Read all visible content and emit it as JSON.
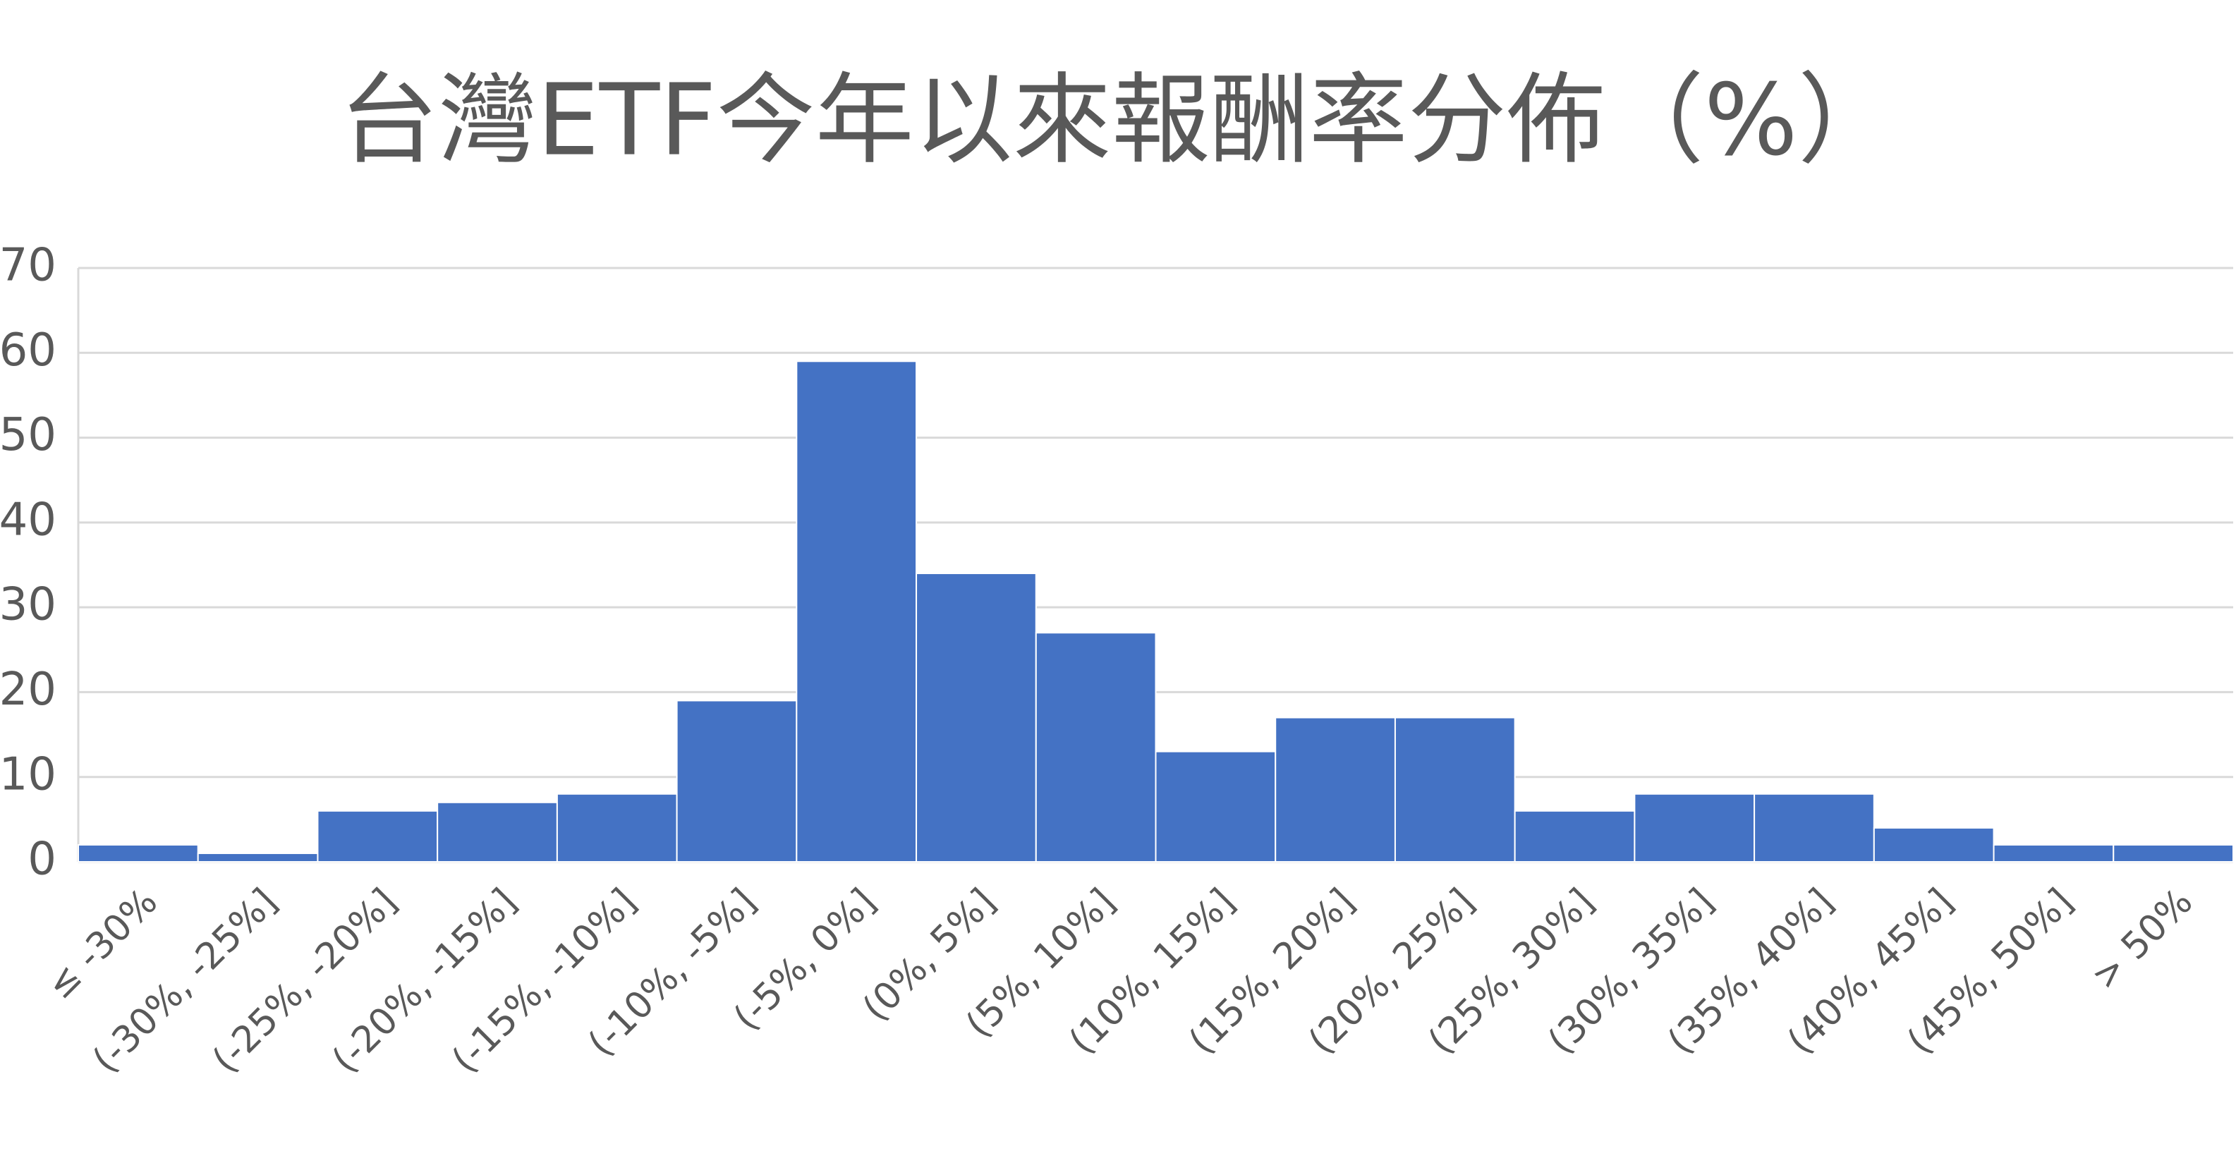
{
  "chart_data": {
    "type": "bar",
    "title": "台灣ETF今年以來報酬率分佈（%）",
    "categories": [
      "≤ -30%",
      "(-30%, -25%]",
      "(-25%, -20%]",
      "(-20%, -15%]",
      "(-15%, -10%]",
      "(-10%, -5%]",
      "(-5%, 0%]",
      "(0%, 5%]",
      "(5%, 10%]",
      "(10%, 15%]",
      "(15%, 20%]",
      "(20%, 25%]",
      "(25%, 30%]",
      "(30%, 35%]",
      "(35%, 40%]",
      "(40%, 45%]",
      "(45%, 50%]",
      "> 50%"
    ],
    "values": [
      2,
      1,
      6,
      7,
      8,
      19,
      59,
      34,
      27,
      13,
      17,
      17,
      6,
      8,
      8,
      4,
      2,
      2
    ],
    "color": "#4472c4",
    "ylim": [
      0,
      70
    ],
    "yticks": [
      0,
      10,
      20,
      30,
      40,
      50,
      60,
      70
    ],
    "grid": true
  }
}
